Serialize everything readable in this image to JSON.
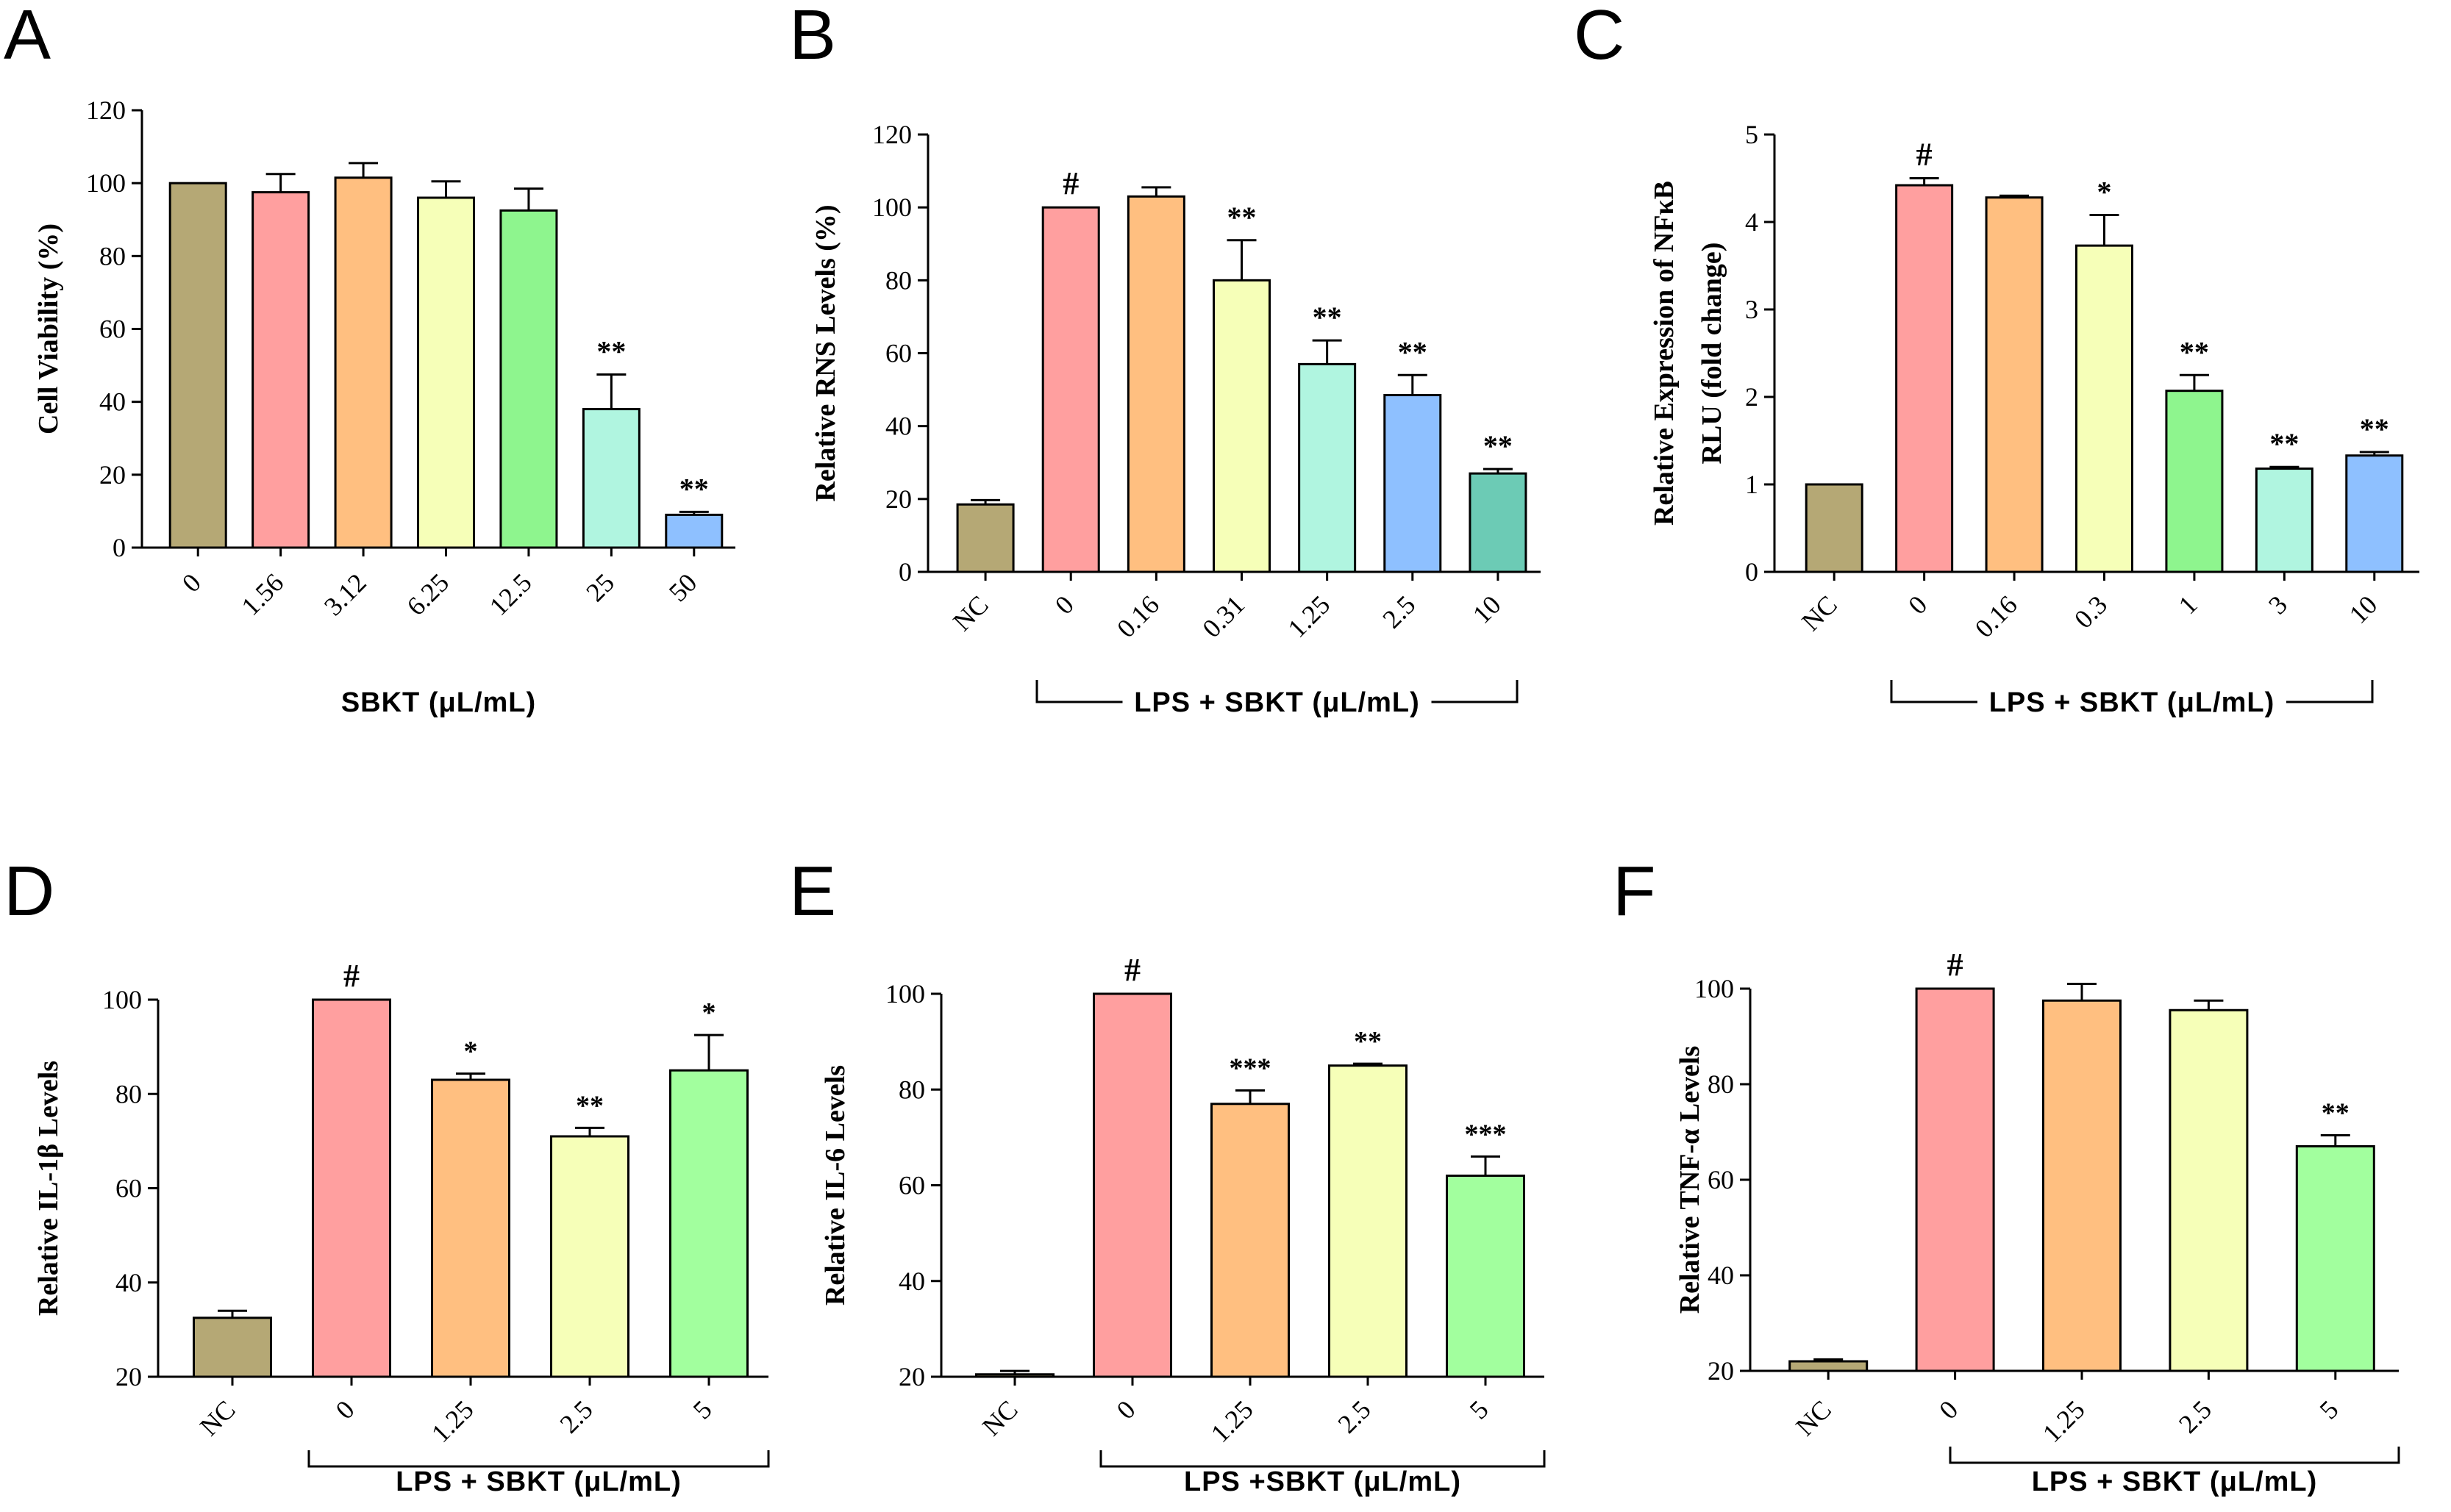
{
  "chart_data": [
    {
      "panel": "A",
      "type": "bar",
      "title": "",
      "ylabel": "Cell Viability (%)",
      "xlabel": "SBKT (μL/mL)",
      "bracket": false,
      "ylim": [
        0,
        120
      ],
      "yticks": [
        0,
        20,
        40,
        60,
        80,
        100,
        120
      ],
      "categories": [
        "0",
        "1.56",
        "3.12",
        "6.25",
        "12.5",
        "25",
        "50"
      ],
      "values": [
        100,
        97.5,
        101.5,
        96,
        92.5,
        38,
        9
      ],
      "errors": [
        0,
        5,
        4,
        4.5,
        6,
        9.5,
        0.8
      ],
      "annotations": [
        "",
        "",
        "",
        "",
        "",
        "**",
        "**"
      ],
      "colors": [
        "#b5a875",
        "#ff9f9f",
        "#ffbf80",
        "#f6ffb8",
        "#8ef58e",
        "#b0f5e0",
        "#8ec0ff"
      ]
    },
    {
      "panel": "B",
      "type": "bar",
      "title": "",
      "ylabel": "Relative RNS Levels (%)",
      "xlabel": "LPS + SBKT (μL/mL)",
      "bracket": true,
      "ylim": [
        0,
        120
      ],
      "yticks": [
        0,
        20,
        40,
        60,
        80,
        100,
        120
      ],
      "categories": [
        "NC",
        "0",
        "0.16",
        "0.31",
        "1.25",
        "2.5",
        "10"
      ],
      "values": [
        18.5,
        100,
        103,
        80,
        57,
        48.5,
        27
      ],
      "errors": [
        1.2,
        0,
        2.5,
        11,
        6.5,
        5.5,
        1.2
      ],
      "annotations": [
        "",
        "#",
        "",
        "**",
        "**",
        "**",
        "**"
      ],
      "colors": [
        "#b5a875",
        "#ff9f9f",
        "#ffbf80",
        "#f6ffb8",
        "#b0f5e0",
        "#8ec0ff",
        "#6ccbb5"
      ]
    },
    {
      "panel": "C",
      "type": "bar",
      "title": "",
      "ylabel": "Relative Expression of NFκB RLU (fold change)",
      "ylabel_lines": [
        "Relative Expression of NFκB",
        "RLU (fold change)"
      ],
      "xlabel": "LPS + SBKT (μL/mL)",
      "bracket": true,
      "ylim": [
        0,
        5
      ],
      "yticks": [
        0,
        1,
        2,
        3,
        4,
        5
      ],
      "categories": [
        "NC",
        "0",
        "0.16",
        "0.3",
        "1",
        "3",
        "10"
      ],
      "values": [
        1,
        4.42,
        4.28,
        3.73,
        2.07,
        1.18,
        1.33
      ],
      "errors": [
        0,
        0.08,
        0.02,
        0.35,
        0.18,
        0.02,
        0.04
      ],
      "annotations": [
        "",
        "#",
        "",
        "*",
        "**",
        "**",
        "**"
      ],
      "colors": [
        "#b5a875",
        "#ff9f9f",
        "#ffbf80",
        "#f6ffb8",
        "#8ef58e",
        "#b0f5e0",
        "#8ec0ff"
      ]
    },
    {
      "panel": "D",
      "type": "bar",
      "title": "",
      "ylabel": "Relative IL-1β Levels",
      "xlabel": "LPS + SBKT (μL/mL)",
      "bracket": true,
      "ylim": [
        20,
        100
      ],
      "yticks": [
        20,
        40,
        60,
        80,
        100
      ],
      "categories": [
        "NC",
        "0",
        "1.25",
        "2.5",
        "5"
      ],
      "values": [
        32.5,
        100,
        83,
        71,
        85
      ],
      "errors": [
        1.5,
        0,
        1.3,
        1.8,
        7.5
      ],
      "annotations": [
        "",
        "#",
        "*",
        "**",
        "*"
      ],
      "colors": [
        "#b5a875",
        "#ff9f9f",
        "#ffbf80",
        "#f6ffb8",
        "#a2ff9e"
      ]
    },
    {
      "panel": "E",
      "type": "bar",
      "title": "",
      "ylabel": "Relative IL-6 Levels",
      "xlabel": "LPS +SBKT (μL/mL)",
      "bracket": true,
      "ylim": [
        20,
        100
      ],
      "yticks": [
        20,
        40,
        60,
        80,
        100
      ],
      "categories": [
        "NC",
        "0",
        "1.25",
        "2.5",
        "5"
      ],
      "values": [
        20.5,
        100,
        77,
        85,
        62
      ],
      "errors": [
        0.7,
        0,
        2.8,
        0.4,
        4
      ],
      "annotations": [
        "",
        "#",
        "***",
        "**",
        "***"
      ],
      "colors": [
        "#b5a875",
        "#ff9f9f",
        "#ffbf80",
        "#f6ffb8",
        "#a2ff9e"
      ]
    },
    {
      "panel": "F",
      "type": "bar",
      "title": "",
      "ylabel": "Relative TNF-α Levels",
      "xlabel": "LPS + SBKT (μL/mL)",
      "bracket": true,
      "ylim": [
        20,
        100
      ],
      "yticks": [
        20,
        40,
        60,
        80,
        100
      ],
      "categories": [
        "NC",
        "0",
        "1.25",
        "2.5",
        "5"
      ],
      "values": [
        22,
        100,
        97.5,
        95.5,
        67
      ],
      "errors": [
        0.4,
        0,
        3.5,
        2,
        2.3
      ],
      "annotations": [
        "",
        "#",
        "",
        "",
        "**"
      ],
      "colors": [
        "#b5a875",
        "#ff9f9f",
        "#ffbf80",
        "#f6ffb8",
        "#a2ff9e"
      ]
    }
  ]
}
